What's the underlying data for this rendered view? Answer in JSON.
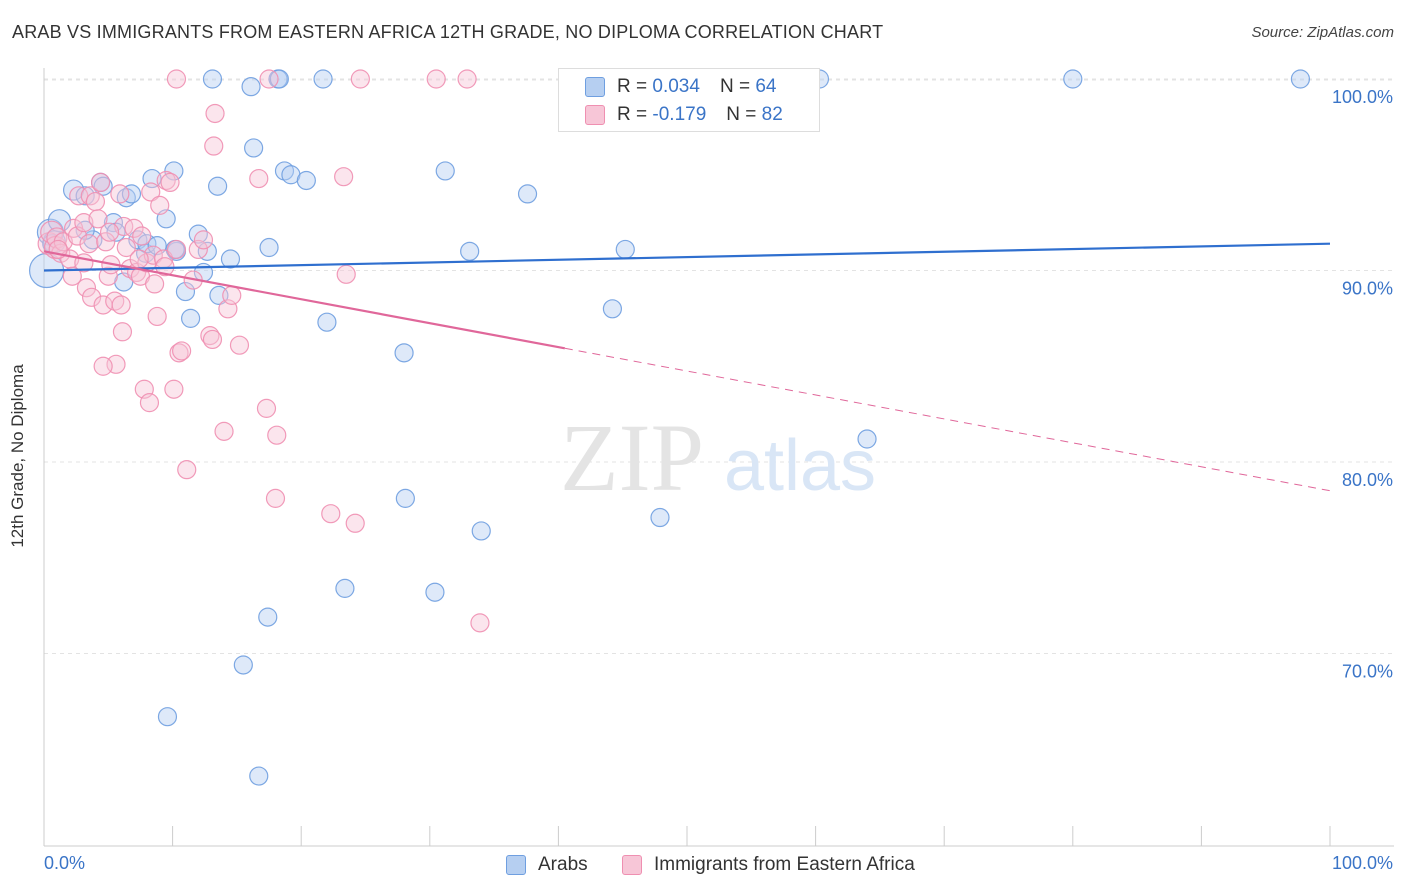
{
  "title": "ARAB VS IMMIGRANTS FROM EASTERN AFRICA 12TH GRADE, NO DIPLOMA CORRELATION CHART",
  "source": "Source: ZipAtlas.com",
  "watermark": {
    "zip": "ZIP",
    "atlas": "atlas"
  },
  "colors": {
    "arabs": "#6f9fe0",
    "arabs_fill": "#b6cff1",
    "eastern_africa": "#ef8fb1",
    "eastern_africa_fill": "#f7c6d7",
    "arabs_line": "#2f6fcf",
    "eastern_africa_line": "#e0679a",
    "tick_label": "#3a74c7"
  },
  "legend": {
    "rows": [
      {
        "r_label": "R = ",
        "r_value": "0.034",
        "n_label": "N = ",
        "n_value": "64"
      },
      {
        "r_label": "R = ",
        "r_value": "-0.179",
        "n_label": "N = ",
        "n_value": "82"
      }
    ]
  },
  "chart_data": {
    "type": "scatter",
    "xlabel": "",
    "ylabel": "12th Grade, No Diploma",
    "xlim": [
      0,
      100
    ],
    "ylim": [
      60,
      101.5
    ],
    "x_tick_labels": [
      "0.0%",
      "100.0%"
    ],
    "y_ticks": [
      70,
      80,
      90,
      100
    ],
    "y_tick_labels": [
      "70.0%",
      "80.0%",
      "90.0%",
      "100.0%"
    ],
    "grid": true,
    "legend_placement": "top-center",
    "series": [
      {
        "name": "Arabs",
        "trend": {
          "x0": 0,
          "y0": 90.0,
          "x1": 100,
          "y1": 91.4,
          "solid_until": 100
        },
        "points": [
          [
            0.2,
            90.0,
            16
          ],
          [
            0.5,
            92.0,
            12
          ],
          [
            0.8,
            91.5,
            10
          ],
          [
            1.2,
            92.6,
            10
          ],
          [
            2.3,
            94.2,
            9
          ],
          [
            3.2,
            93.9,
            8
          ],
          [
            3.8,
            91.6,
            8
          ],
          [
            4.4,
            94.6,
            8
          ],
          [
            4.6,
            94.4,
            8
          ],
          [
            5.4,
            92.5,
            8
          ],
          [
            5.6,
            92.0,
            8
          ],
          [
            6.2,
            89.4,
            8
          ],
          [
            6.4,
            93.8,
            8
          ],
          [
            6.8,
            94.0,
            8
          ],
          [
            7.3,
            91.6,
            8
          ],
          [
            7.9,
            90.9,
            8
          ],
          [
            8.0,
            91.4,
            8
          ],
          [
            8.4,
            94.8,
            8
          ],
          [
            8.8,
            91.3,
            8
          ],
          [
            9.5,
            92.7,
            8
          ],
          [
            10.1,
            95.2,
            8
          ],
          [
            10.3,
            91.0,
            8
          ],
          [
            11.0,
            88.9,
            8
          ],
          [
            11.4,
            87.5,
            8
          ],
          [
            12.0,
            91.9,
            8
          ],
          [
            12.4,
            89.9,
            8
          ],
          [
            12.7,
            91.0,
            8
          ],
          [
            13.1,
            100.0,
            8
          ],
          [
            13.5,
            94.4,
            8
          ],
          [
            13.6,
            88.7,
            8
          ],
          [
            14.5,
            90.6,
            8
          ],
          [
            16.1,
            99.6,
            8
          ],
          [
            16.3,
            96.4,
            8
          ],
          [
            17.5,
            91.2,
            8
          ],
          [
            18.2,
            100.0,
            8
          ],
          [
            18.7,
            95.2,
            8
          ],
          [
            19.2,
            95.0,
            8
          ],
          [
            20.4,
            94.7,
            8
          ],
          [
            21.7,
            100.0,
            8
          ],
          [
            22.0,
            87.3,
            8
          ],
          [
            28.0,
            85.7,
            8
          ],
          [
            31.2,
            95.2,
            8
          ],
          [
            33.1,
            91.0,
            8
          ],
          [
            37.6,
            94.0,
            8
          ],
          [
            44.2,
            88.0,
            8
          ],
          [
            45.2,
            91.1,
            8
          ],
          [
            47.8,
            100.0,
            8
          ],
          [
            60.3,
            100.0,
            8
          ],
          [
            80.0,
            100.0,
            8
          ],
          [
            97.7,
            100.0,
            8
          ],
          [
            64.0,
            81.2,
            8
          ],
          [
            28.1,
            78.1,
            8
          ],
          [
            34.0,
            76.4,
            8
          ],
          [
            47.9,
            77.1,
            8
          ],
          [
            23.4,
            73.4,
            8
          ],
          [
            30.4,
            73.2,
            8
          ],
          [
            17.4,
            71.9,
            8
          ],
          [
            15.5,
            69.4,
            8
          ],
          [
            9.6,
            66.7,
            8
          ],
          [
            16.7,
            63.6,
            8
          ],
          [
            18.3,
            100.0,
            8
          ],
          [
            10.2,
            91.1,
            8
          ],
          [
            3.2,
            92.1,
            8
          ],
          [
            0.6,
            91.4,
            8
          ]
        ]
      },
      {
        "name": "Immigrants from Eastern Africa",
        "trend": {
          "x0": 0,
          "y0": 91.0,
          "x1": 100,
          "y1": 78.5,
          "solid_until": 40.5
        },
        "points": [
          [
            0.4,
            91.4,
            10
          ],
          [
            0.6,
            92.0,
            10
          ],
          [
            0.9,
            91.2,
            10
          ],
          [
            1.0,
            91.7,
            9
          ],
          [
            1.3,
            90.9,
            8
          ],
          [
            1.5,
            91.5,
            8
          ],
          [
            2.0,
            90.6,
            8
          ],
          [
            2.3,
            92.2,
            8
          ],
          [
            2.6,
            91.8,
            8
          ],
          [
            2.7,
            93.9,
            8
          ],
          [
            3.1,
            92.5,
            8
          ],
          [
            3.3,
            89.1,
            8
          ],
          [
            3.5,
            91.4,
            8
          ],
          [
            3.6,
            93.9,
            8
          ],
          [
            3.7,
            88.6,
            8
          ],
          [
            4.0,
            93.6,
            8
          ],
          [
            4.2,
            92.7,
            8
          ],
          [
            4.4,
            94.6,
            8
          ],
          [
            4.6,
            88.2,
            8
          ],
          [
            4.8,
            91.5,
            8
          ],
          [
            5.0,
            89.7,
            8
          ],
          [
            5.2,
            90.3,
            8
          ],
          [
            5.5,
            88.4,
            8
          ],
          [
            5.6,
            85.1,
            8
          ],
          [
            5.9,
            94.0,
            8
          ],
          [
            6.1,
            86.8,
            8
          ],
          [
            6.2,
            92.3,
            8
          ],
          [
            6.4,
            91.2,
            8
          ],
          [
            6.7,
            90.1,
            8
          ],
          [
            7.0,
            92.2,
            8
          ],
          [
            7.2,
            89.9,
            8
          ],
          [
            7.5,
            89.7,
            8
          ],
          [
            7.6,
            91.8,
            8
          ],
          [
            7.8,
            83.8,
            8
          ],
          [
            8.0,
            90.4,
            8
          ],
          [
            8.3,
            94.1,
            8
          ],
          [
            8.5,
            90.8,
            8
          ],
          [
            8.6,
            89.3,
            8
          ],
          [
            8.8,
            87.6,
            8
          ],
          [
            9.0,
            93.4,
            8
          ],
          [
            9.3,
            90.6,
            8
          ],
          [
            9.5,
            94.7,
            8
          ],
          [
            9.8,
            94.6,
            8
          ],
          [
            10.1,
            83.8,
            8
          ],
          [
            10.3,
            91.1,
            8
          ],
          [
            10.5,
            85.7,
            8
          ],
          [
            10.7,
            85.8,
            8
          ],
          [
            11.1,
            79.6,
            8
          ],
          [
            12.0,
            91.1,
            8
          ],
          [
            12.4,
            91.6,
            8
          ],
          [
            12.9,
            86.6,
            8
          ],
          [
            13.1,
            86.4,
            8
          ],
          [
            13.2,
            96.5,
            8
          ],
          [
            13.3,
            98.2,
            8
          ],
          [
            14.0,
            81.6,
            8
          ],
          [
            14.3,
            88.0,
            8
          ],
          [
            14.6,
            88.7,
            8
          ],
          [
            15.2,
            86.1,
            8
          ],
          [
            16.7,
            94.8,
            8
          ],
          [
            17.3,
            82.8,
            8
          ],
          [
            17.5,
            100.0,
            8
          ],
          [
            18.0,
            78.1,
            8
          ],
          [
            18.1,
            81.4,
            8
          ],
          [
            22.3,
            77.3,
            8
          ],
          [
            23.3,
            94.9,
            8
          ],
          [
            23.5,
            89.8,
            8
          ],
          [
            24.2,
            76.8,
            8
          ],
          [
            24.6,
            100.0,
            8
          ],
          [
            30.5,
            100.0,
            8
          ],
          [
            32.9,
            100.0,
            8
          ],
          [
            33.9,
            71.6,
            8
          ],
          [
            10.3,
            100.0,
            8
          ],
          [
            1.1,
            91.1,
            8
          ],
          [
            2.2,
            89.7,
            8
          ],
          [
            8.2,
            83.1,
            8
          ],
          [
            4.6,
            85.0,
            8
          ],
          [
            6.0,
            88.2,
            8
          ],
          [
            9.4,
            90.2,
            8
          ],
          [
            11.6,
            89.5,
            8
          ],
          [
            7.4,
            90.6,
            8
          ],
          [
            5.1,
            92.0,
            8
          ],
          [
            3.1,
            90.4,
            8
          ]
        ]
      }
    ]
  }
}
